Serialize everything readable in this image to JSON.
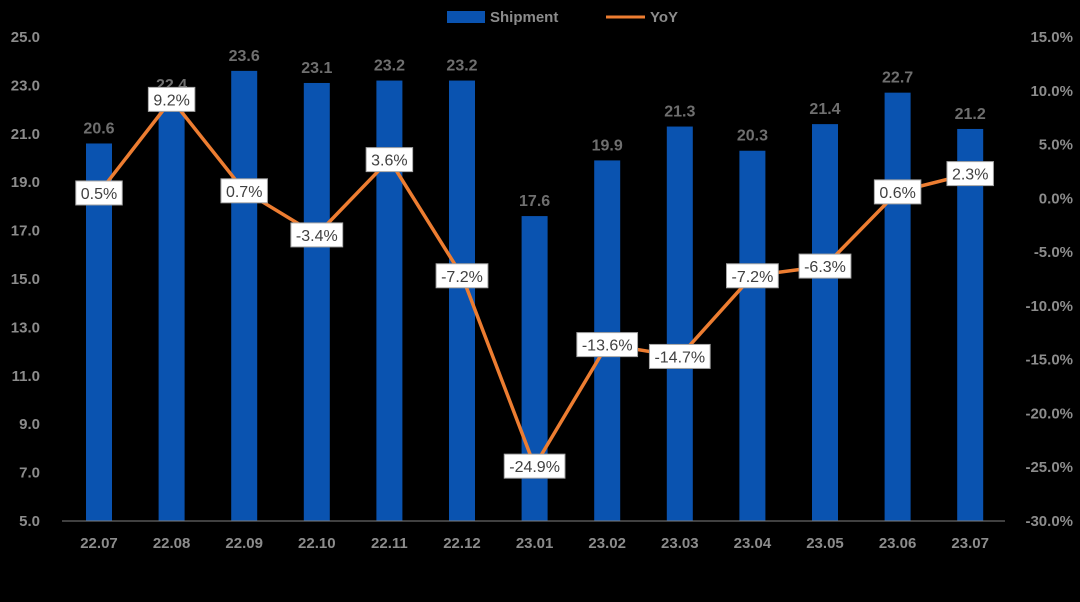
{
  "chart_data": {
    "type": "bar",
    "title": "",
    "xlabel": "",
    "ylabel": "",
    "categories": [
      "22.07",
      "22.08",
      "22.09",
      "22.10",
      "22.11",
      "22.12",
      "23.01",
      "23.02",
      "23.03",
      "23.04",
      "23.05",
      "23.06",
      "23.07"
    ],
    "series": [
      {
        "name": "Shipment",
        "type": "bar",
        "axis": "left",
        "color": "#0a53b0",
        "values": [
          20.6,
          22.4,
          23.6,
          23.1,
          23.2,
          23.2,
          17.6,
          19.9,
          21.3,
          20.3,
          21.4,
          22.7,
          21.2
        ],
        "labels": [
          "20.6",
          "22.4",
          "23.6",
          "23.1",
          "23.2",
          "23.2",
          "17.6",
          "19.9",
          "21.3",
          "20.3",
          "21.4",
          "22.7",
          "21.2"
        ]
      },
      {
        "name": "YoY",
        "type": "line",
        "axis": "right",
        "color": "#ed7d31",
        "values": [
          0.5,
          9.2,
          0.7,
          -3.4,
          3.6,
          -7.2,
          -24.9,
          -13.6,
          -14.7,
          -7.2,
          -6.3,
          0.6,
          2.3
        ],
        "labels": [
          "0.5%",
          "9.2%",
          "0.7%",
          "-3.4%",
          "3.6%",
          "-7.2%",
          "-24.9%",
          "-13.6%",
          "-14.7%",
          "-7.2%",
          "-6.3%",
          "0.6%",
          "2.3%"
        ]
      }
    ],
    "y_left": {
      "range": [
        5.0,
        25.0
      ],
      "ticks": [
        5.0,
        7.0,
        9.0,
        11.0,
        13.0,
        15.0,
        17.0,
        19.0,
        21.0,
        23.0,
        25.0
      ],
      "tick_labels": [
        "5.0",
        "7.0",
        "9.0",
        "11.0",
        "13.0",
        "15.0",
        "17.0",
        "19.0",
        "21.0",
        "23.0",
        "25.0"
      ]
    },
    "y_right": {
      "range": [
        -30.0,
        15.0
      ],
      "ticks": [
        -30,
        -25,
        -20,
        -15,
        -10,
        -5,
        0,
        5,
        10,
        15
      ],
      "tick_labels": [
        "-30.0%",
        "-25.0%",
        "-20.0%",
        "-15.0%",
        "-10.0%",
        "-5.0%",
        "0.0%",
        "5.0%",
        "10.0%",
        "15.0%"
      ]
    },
    "legend": {
      "position": "top-center",
      "items": [
        "Shipment",
        "YoY"
      ]
    },
    "grid": false
  }
}
